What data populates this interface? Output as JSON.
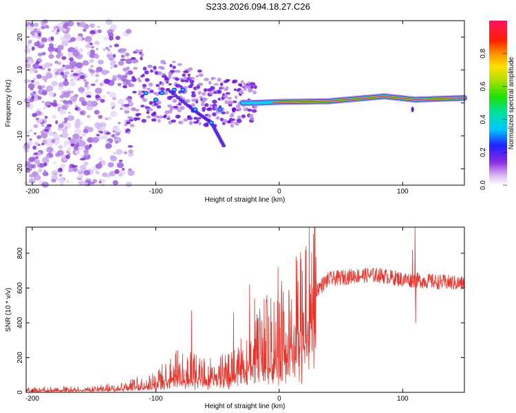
{
  "title": "S233.2026.094.18.27.C26",
  "chart_data": [
    {
      "type": "heatmap",
      "name": "spectrogram",
      "xlabel": "Height of straight line (km)",
      "ylabel": "Frequency (Hz)",
      "xlim": [
        -205,
        150
      ],
      "ylim": [
        -25,
        25
      ],
      "xticks": [
        -200,
        -100,
        0,
        100
      ],
      "yticks": [
        -20,
        -10,
        0,
        10,
        20
      ],
      "colorbar": {
        "label": "Normalized spectral amplitude",
        "range": [
          0,
          1
        ],
        "ticks": [
          0.0,
          0.2,
          0.4,
          0.6,
          0.8
        ]
      },
      "trace": {
        "description_points": [
          {
            "x": -120,
            "f": 6
          },
          {
            "x": -100,
            "f": 4
          },
          {
            "x": -80,
            "f": 3
          },
          {
            "x": -60,
            "f": 1
          },
          {
            "x": -40,
            "f": 0
          },
          {
            "x": -20,
            "f": 0
          },
          {
            "x": 0,
            "f": 0.3
          },
          {
            "x": 40,
            "f": 0.5
          },
          {
            "x": 85,
            "f": 2
          },
          {
            "x": 110,
            "f": 1
          },
          {
            "x": 150,
            "f": 1.5
          }
        ],
        "branch_points": [
          {
            "x": -90,
            "f": 4
          },
          {
            "x": -70,
            "f": -2
          },
          {
            "x": -55,
            "f": -6
          },
          {
            "x": -45,
            "f": -13
          }
        ]
      }
    },
    {
      "type": "line",
      "name": "snr",
      "xlabel": "Height of straight line (km)",
      "ylabel": "SNR (10 * v/v)",
      "xlim": [
        -205,
        150
      ],
      "ylim": [
        0,
        950
      ],
      "xticks": [
        -200,
        -100,
        0,
        100
      ],
      "yticks": [
        0,
        200,
        400,
        600,
        800
      ],
      "color": "#e8332b",
      "envelope": [
        {
          "x": -205,
          "y": 15
        },
        {
          "x": -150,
          "y": 20
        },
        {
          "x": -120,
          "y": 40
        },
        {
          "x": -100,
          "y": 70
        },
        {
          "x": -80,
          "y": 140
        },
        {
          "x": -60,
          "y": 110
        },
        {
          "x": -40,
          "y": 120
        },
        {
          "x": -25,
          "y": 200
        },
        {
          "x": -15,
          "y": 280
        },
        {
          "x": 0,
          "y": 300
        },
        {
          "x": 10,
          "y": 380
        },
        {
          "x": 20,
          "y": 480
        },
        {
          "x": 30,
          "y": 590
        },
        {
          "x": 40,
          "y": 650
        },
        {
          "x": 60,
          "y": 670
        },
        {
          "x": 80,
          "y": 675
        },
        {
          "x": 100,
          "y": 650
        },
        {
          "x": 120,
          "y": 640
        },
        {
          "x": 150,
          "y": 625
        }
      ],
      "spikes": [
        {
          "x": -71,
          "y": 470
        },
        {
          "x": -37,
          "y": 460
        },
        {
          "x": -24,
          "y": 620
        },
        {
          "x": -20,
          "y": 540
        },
        {
          "x": -10,
          "y": 560
        },
        {
          "x": -1,
          "y": 720
        },
        {
          "x": 2,
          "y": 640
        },
        {
          "x": 108,
          "y": 820
        },
        {
          "x": 110,
          "y": 950
        },
        {
          "x": 110.5,
          "y": 400
        }
      ]
    }
  ]
}
